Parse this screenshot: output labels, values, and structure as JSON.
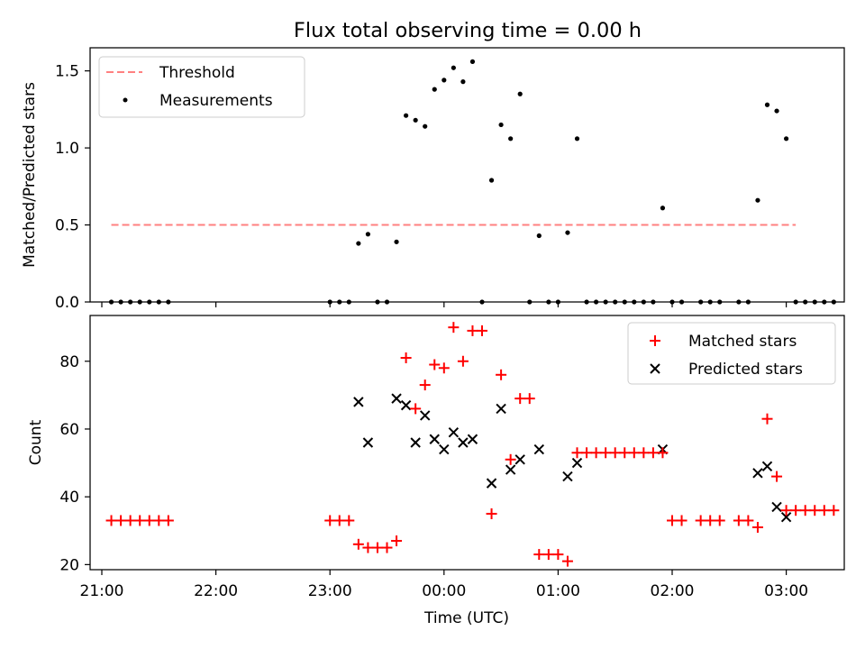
{
  "title": "Flux total observing time = 0.00 h",
  "colors": {
    "threshold": "#ff8080",
    "measurement": "#000000",
    "matched": "#ff0000",
    "predicted": "#000000"
  },
  "chart_data": [
    {
      "type": "scatter",
      "ylabel": "Matched/Predicted stars",
      "ylim": [
        0,
        1.65
      ],
      "yticks": [
        "0.0",
        "0.5",
        "1.0",
        "1.5"
      ],
      "grid": false,
      "legend": {
        "placement": "upper-left",
        "entries": [
          "Threshold",
          "Measurements"
        ]
      },
      "threshold": {
        "label": "Threshold",
        "y": 0.5,
        "x": [
          "21:05",
          "03:05"
        ]
      },
      "series": [
        {
          "name": "Measurements",
          "points": [
            [
              "21:05",
              0
            ],
            [
              "21:10",
              0
            ],
            [
              "21:15",
              0
            ],
            [
              "21:20",
              0
            ],
            [
              "21:25",
              0
            ],
            [
              "21:30",
              0
            ],
            [
              "21:35",
              0
            ],
            [
              "23:00",
              0
            ],
            [
              "23:05",
              0
            ],
            [
              "23:10",
              0
            ],
            [
              "23:15",
              0.38
            ],
            [
              "23:20",
              0.44
            ],
            [
              "23:25",
              0
            ],
            [
              "23:30",
              0
            ],
            [
              "23:35",
              0.39
            ],
            [
              "23:40",
              1.21
            ],
            [
              "23:45",
              1.18
            ],
            [
              "23:50",
              1.14
            ],
            [
              "23:55",
              1.38
            ],
            [
              "00:00",
              1.44
            ],
            [
              "00:05",
              1.52
            ],
            [
              "00:10",
              1.43
            ],
            [
              "00:15",
              1.56
            ],
            [
              "00:20",
              0
            ],
            [
              "00:25",
              0.79
            ],
            [
              "00:30",
              1.15
            ],
            [
              "00:35",
              1.06
            ],
            [
              "00:40",
              1.35
            ],
            [
              "00:45",
              0
            ],
            [
              "00:50",
              0.43
            ],
            [
              "00:55",
              0
            ],
            [
              "01:00",
              0
            ],
            [
              "01:05",
              0.45
            ],
            [
              "01:10",
              1.06
            ],
            [
              "01:15",
              0
            ],
            [
              "01:20",
              0
            ],
            [
              "01:25",
              0
            ],
            [
              "01:30",
              0
            ],
            [
              "01:35",
              0
            ],
            [
              "01:40",
              0
            ],
            [
              "01:45",
              0
            ],
            [
              "01:50",
              0
            ],
            [
              "01:55",
              0.61
            ],
            [
              "02:00",
              0
            ],
            [
              "02:05",
              0
            ],
            [
              "02:15",
              0
            ],
            [
              "02:20",
              0
            ],
            [
              "02:25",
              0
            ],
            [
              "02:35",
              0
            ],
            [
              "02:40",
              0
            ],
            [
              "02:45",
              0.66
            ],
            [
              "02:50",
              1.28
            ],
            [
              "02:55",
              1.24
            ],
            [
              "03:00",
              1.06
            ],
            [
              "03:05",
              0
            ],
            [
              "03:10",
              0
            ],
            [
              "03:15",
              0
            ],
            [
              "03:20",
              0
            ],
            [
              "03:25",
              0
            ]
          ]
        }
      ]
    },
    {
      "type": "scatter",
      "ylabel": "Count",
      "xlabel": "Time (UTC)",
      "ylim": [
        18.5,
        93.5
      ],
      "yticks": [
        "20",
        "40",
        "60",
        "80"
      ],
      "xticks": [
        "21:00",
        "22:00",
        "23:00",
        "00:00",
        "01:00",
        "02:00",
        "03:00"
      ],
      "grid": false,
      "legend": {
        "placement": "upper-right",
        "entries": [
          "Matched stars",
          "Predicted stars"
        ]
      },
      "series": [
        {
          "name": "Matched stars",
          "points": [
            [
              "21:05",
              33
            ],
            [
              "21:10",
              33
            ],
            [
              "21:15",
              33
            ],
            [
              "21:20",
              33
            ],
            [
              "21:25",
              33
            ],
            [
              "21:30",
              33
            ],
            [
              "21:35",
              33
            ],
            [
              "23:00",
              33
            ],
            [
              "23:05",
              33
            ],
            [
              "23:10",
              33
            ],
            [
              "23:15",
              26
            ],
            [
              "23:20",
              25
            ],
            [
              "23:25",
              25
            ],
            [
              "23:30",
              25
            ],
            [
              "23:35",
              27
            ],
            [
              "23:40",
              81
            ],
            [
              "23:45",
              66
            ],
            [
              "23:50",
              73
            ],
            [
              "23:55",
              79
            ],
            [
              "00:00",
              78
            ],
            [
              "00:05",
              90
            ],
            [
              "00:10",
              80
            ],
            [
              "00:15",
              89
            ],
            [
              "00:20",
              89
            ],
            [
              "00:25",
              35
            ],
            [
              "00:30",
              76
            ],
            [
              "00:35",
              51
            ],
            [
              "00:40",
              69
            ],
            [
              "00:45",
              69
            ],
            [
              "00:50",
              23
            ],
            [
              "00:55",
              23
            ],
            [
              "01:00",
              23
            ],
            [
              "01:05",
              21
            ],
            [
              "01:10",
              53
            ],
            [
              "01:15",
              53
            ],
            [
              "01:20",
              53
            ],
            [
              "01:25",
              53
            ],
            [
              "01:30",
              53
            ],
            [
              "01:35",
              53
            ],
            [
              "01:40",
              53
            ],
            [
              "01:45",
              53
            ],
            [
              "01:50",
              53
            ],
            [
              "01:55",
              53
            ],
            [
              "02:00",
              33
            ],
            [
              "02:05",
              33
            ],
            [
              "02:15",
              33
            ],
            [
              "02:20",
              33
            ],
            [
              "02:25",
              33
            ],
            [
              "02:35",
              33
            ],
            [
              "02:40",
              33
            ],
            [
              "02:45",
              31
            ],
            [
              "02:50",
              63
            ],
            [
              "02:55",
              46
            ],
            [
              "03:00",
              36
            ],
            [
              "03:05",
              36
            ],
            [
              "03:10",
              36
            ],
            [
              "03:15",
              36
            ],
            [
              "03:20",
              36
            ],
            [
              "03:25",
              36
            ]
          ]
        },
        {
          "name": "Predicted stars",
          "points": [
            [
              "23:15",
              68
            ],
            [
              "23:20",
              56
            ],
            [
              "23:35",
              69
            ],
            [
              "23:40",
              67
            ],
            [
              "23:45",
              56
            ],
            [
              "23:50",
              64
            ],
            [
              "23:55",
              57
            ],
            [
              "00:00",
              54
            ],
            [
              "00:05",
              59
            ],
            [
              "00:10",
              56
            ],
            [
              "00:15",
              57
            ],
            [
              "00:25",
              44
            ],
            [
              "00:30",
              66
            ],
            [
              "00:35",
              48
            ],
            [
              "00:40",
              51
            ],
            [
              "00:50",
              54
            ],
            [
              "01:05",
              46
            ],
            [
              "01:10",
              50
            ],
            [
              "01:55",
              54
            ],
            [
              "02:45",
              47
            ],
            [
              "02:50",
              49
            ],
            [
              "02:55",
              37
            ],
            [
              "03:00",
              34
            ]
          ]
        }
      ]
    }
  ]
}
